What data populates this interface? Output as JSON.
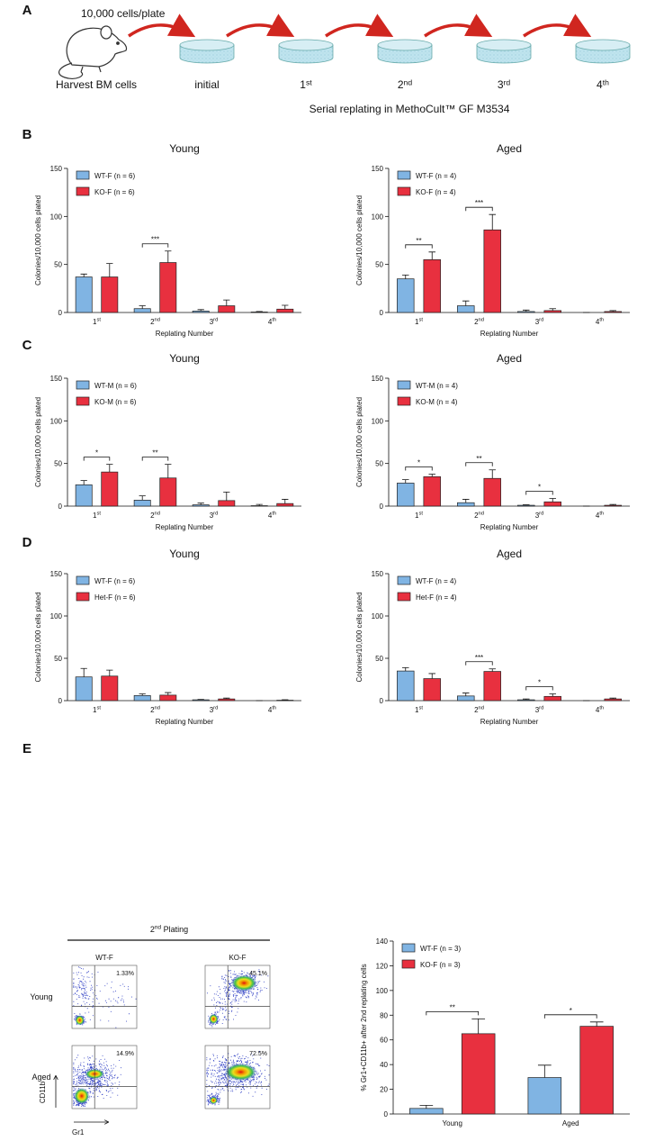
{
  "panel_labels": [
    "A",
    "B",
    "C",
    "D",
    "E"
  ],
  "panel_a": {
    "cells_per_plate": "10,000 cells/plate",
    "harvest": "Harvest BM cells",
    "steps": [
      "initial",
      "1st",
      "2nd",
      "3rd",
      "4th"
    ],
    "caption": "Serial replating in MethoCult™ GF M3534"
  },
  "panel_e_flow": {
    "header": "2nd Plating",
    "columns": [
      "WT-F",
      "KO-F"
    ],
    "rows": [
      "Young",
      "Aged"
    ],
    "percentages": [
      [
        "1.33%",
        "45.1%"
      ],
      [
        "14.9%",
        "72.5%"
      ]
    ],
    "y_axis": "CD11b",
    "x_axis": "Gr1"
  },
  "chart_data": [
    {
      "type": "bar",
      "title": "Young",
      "xlabel": "Replating Number",
      "ylabel": "Colonies/10,000 cells plated",
      "categories": [
        "1st",
        "2nd",
        "3rd",
        "4th"
      ],
      "ylim": [
        0,
        150
      ],
      "yticks": [
        0,
        50,
        100,
        150
      ],
      "series": [
        {
          "name": "WT-F (n = 6)",
          "color": "#80b4e3",
          "values": [
            37,
            4,
            1.5,
            0.5
          ],
          "errors": [
            3,
            3,
            1.5,
            0.5
          ]
        },
        {
          "name": "KO-F (n = 6)",
          "color": "#e8303f",
          "values": [
            37,
            52,
            7,
            3.5
          ],
          "errors": [
            14,
            12,
            6,
            4
          ]
        }
      ],
      "significance": [
        null,
        "***",
        null,
        null
      ]
    },
    {
      "type": "bar",
      "title": "Aged",
      "xlabel": "Replating Number",
      "ylabel": "Colonies/10,000 cells plated",
      "categories": [
        "1st",
        "2nd",
        "3rd",
        "4th"
      ],
      "ylim": [
        0,
        150
      ],
      "yticks": [
        0,
        50,
        100,
        150
      ],
      "series": [
        {
          "name": "WT-F (n = 4)",
          "color": "#80b4e3",
          "values": [
            35,
            7,
            1,
            0
          ],
          "errors": [
            4,
            5,
            1.5,
            0
          ]
        },
        {
          "name": "KO-F (n = 4)",
          "color": "#e8303f",
          "values": [
            55,
            86,
            2,
            1
          ],
          "errors": [
            8,
            16,
            2,
            1
          ]
        }
      ],
      "significance": [
        "**",
        "***",
        null,
        null
      ]
    },
    {
      "type": "bar",
      "title": "Young",
      "xlabel": "Replating Number",
      "ylabel": "Colonies/10,000 cells plated",
      "categories": [
        "1st",
        "2nd",
        "3rd",
        "4th"
      ],
      "ylim": [
        0,
        150
      ],
      "yticks": [
        0,
        50,
        100,
        150
      ],
      "series": [
        {
          "name": "WT-M (n = 6)",
          "color": "#80b4e3",
          "values": [
            25,
            7,
            1.5,
            0.5
          ],
          "errors": [
            5,
            5,
            2,
            1.5
          ]
        },
        {
          "name": "KO-M (n = 6)",
          "color": "#e8303f",
          "values": [
            40,
            33,
            6.5,
            3
          ],
          "errors": [
            9,
            16,
            10,
            5
          ]
        }
      ],
      "significance": [
        "*",
        "**",
        null,
        null
      ]
    },
    {
      "type": "bar",
      "title": "Aged",
      "xlabel": "Replating Number",
      "ylabel": "Colonies/10,000 cells plated",
      "categories": [
        "1st",
        "2nd",
        "3rd",
        "4th"
      ],
      "ylim": [
        0,
        150
      ],
      "yticks": [
        0,
        50,
        100,
        150
      ],
      "series": [
        {
          "name": "WT-M (n = 4)",
          "color": "#80b4e3",
          "values": [
            27,
            4,
            1,
            0
          ],
          "errors": [
            4,
            4,
            0.5,
            0
          ]
        },
        {
          "name": "KO-M (n = 4)",
          "color": "#e8303f",
          "values": [
            34.5,
            32.5,
            5,
            1
          ],
          "errors": [
            3,
            10,
            4,
            1
          ]
        }
      ],
      "significance": [
        "*",
        "**",
        "*",
        null
      ]
    },
    {
      "type": "bar",
      "title": "Young",
      "xlabel": "Replating Number",
      "ylabel": "Colonies/10,000 cells plated",
      "categories": [
        "1st",
        "2nd",
        "3rd",
        "4th"
      ],
      "ylim": [
        0,
        150
      ],
      "yticks": [
        0,
        50,
        100,
        150
      ],
      "series": [
        {
          "name": "WT-F (n = 6)",
          "color": "#80b4e3",
          "values": [
            28,
            6,
            1,
            0
          ],
          "errors": [
            10,
            2,
            0.5,
            0
          ]
        },
        {
          "name": "Het-F (n = 6)",
          "color": "#e8303f",
          "values": [
            29,
            6.5,
            2,
            0.5
          ],
          "errors": [
            7,
            3,
            1,
            0.5
          ]
        }
      ],
      "significance": [
        null,
        null,
        null,
        null
      ]
    },
    {
      "type": "bar",
      "title": "Aged",
      "xlabel": "Replating Number",
      "ylabel": "Colonies/10,000 cells plated",
      "categories": [
        "1st",
        "2nd",
        "3rd",
        "4th"
      ],
      "ylim": [
        0,
        150
      ],
      "yticks": [
        0,
        50,
        100,
        150
      ],
      "series": [
        {
          "name": "WT-F (n = 4)",
          "color": "#80b4e3",
          "values": [
            35,
            5.5,
            1,
            0
          ],
          "errors": [
            4,
            3.5,
            1,
            0
          ]
        },
        {
          "name": "Het-F (n = 4)",
          "color": "#e8303f",
          "values": [
            26,
            34.5,
            5,
            2
          ],
          "errors": [
            6,
            3,
            3,
            1
          ]
        }
      ],
      "significance": [
        null,
        "***",
        "*",
        null
      ]
    },
    {
      "type": "bar",
      "ylabel": "% Gr1+CD11b+ after 2nd replating cells",
      "categories": [
        "Young",
        "Aged"
      ],
      "ylim": [
        0,
        140
      ],
      "yticks": [
        0,
        20,
        40,
        60,
        80,
        100,
        120,
        140
      ],
      "series": [
        {
          "name": "WT-F (n = 3)",
          "color": "#80b4e3",
          "values": [
            4.5,
            29.5
          ],
          "errors": [
            2.5,
            10
          ]
        },
        {
          "name": "KO-F (n = 3)",
          "color": "#e8303f",
          "values": [
            65,
            71
          ],
          "errors": [
            12,
            3.5
          ]
        }
      ],
      "significance": [
        "**",
        "*"
      ]
    }
  ]
}
